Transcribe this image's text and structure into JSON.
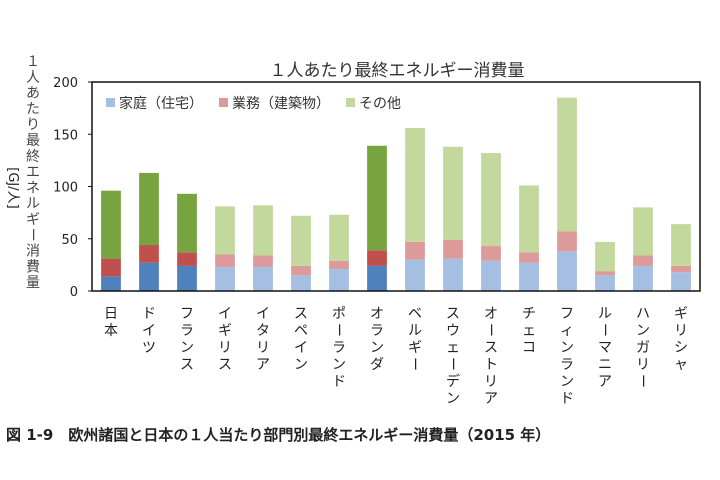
{
  "caption": "図 1-9　欧州諸国と日本の１人当たり部門別最終エネルギー消費量（2015 年）",
  "chart_data": {
    "type": "bar",
    "stacked": true,
    "title": "１人あたり最終エネルギー消費量",
    "ylabel": "１人あたり最終エネルギー消費量",
    "yunit": "[GJ/人]",
    "ylim": [
      0,
      200
    ],
    "yticks": [
      0,
      50,
      100,
      150,
      200
    ],
    "legend_position": "top-left",
    "categories": [
      "日本",
      "ドイツ",
      "フランス",
      "イギリス",
      "イタリア",
      "スペイン",
      "ポーランド",
      "オランダ",
      "ベルギー",
      "スウェーデン",
      "オーストリア",
      "チェコ",
      "フィンランド",
      "ルーマニア",
      "ハンガリー",
      "ギリシャ"
    ],
    "highlighted_categories": [
      "日本",
      "ドイツ",
      "フランス",
      "オランダ"
    ],
    "series": [
      {
        "name": "家庭（住宅）",
        "values": [
          14,
          27,
          24,
          23,
          23,
          15,
          21,
          24,
          30,
          31,
          29,
          27,
          38,
          15,
          24,
          18
        ],
        "color": "#4f81bd",
        "light_color": "#a4bfe1"
      },
      {
        "name": "業務（建築物）",
        "values": [
          17,
          17,
          13,
          12,
          11,
          9,
          8,
          15,
          17,
          18,
          14,
          10,
          19,
          4,
          10,
          6
        ],
        "color": "#c0504d",
        "light_color": "#dd9a9a"
      },
      {
        "name": "その他",
        "values": [
          65,
          69,
          56,
          46,
          48,
          48,
          44,
          100,
          109,
          89,
          89,
          64,
          128,
          28,
          46,
          40
        ],
        "color": "#77a43e",
        "light_color": "#c3d89c"
      }
    ]
  }
}
